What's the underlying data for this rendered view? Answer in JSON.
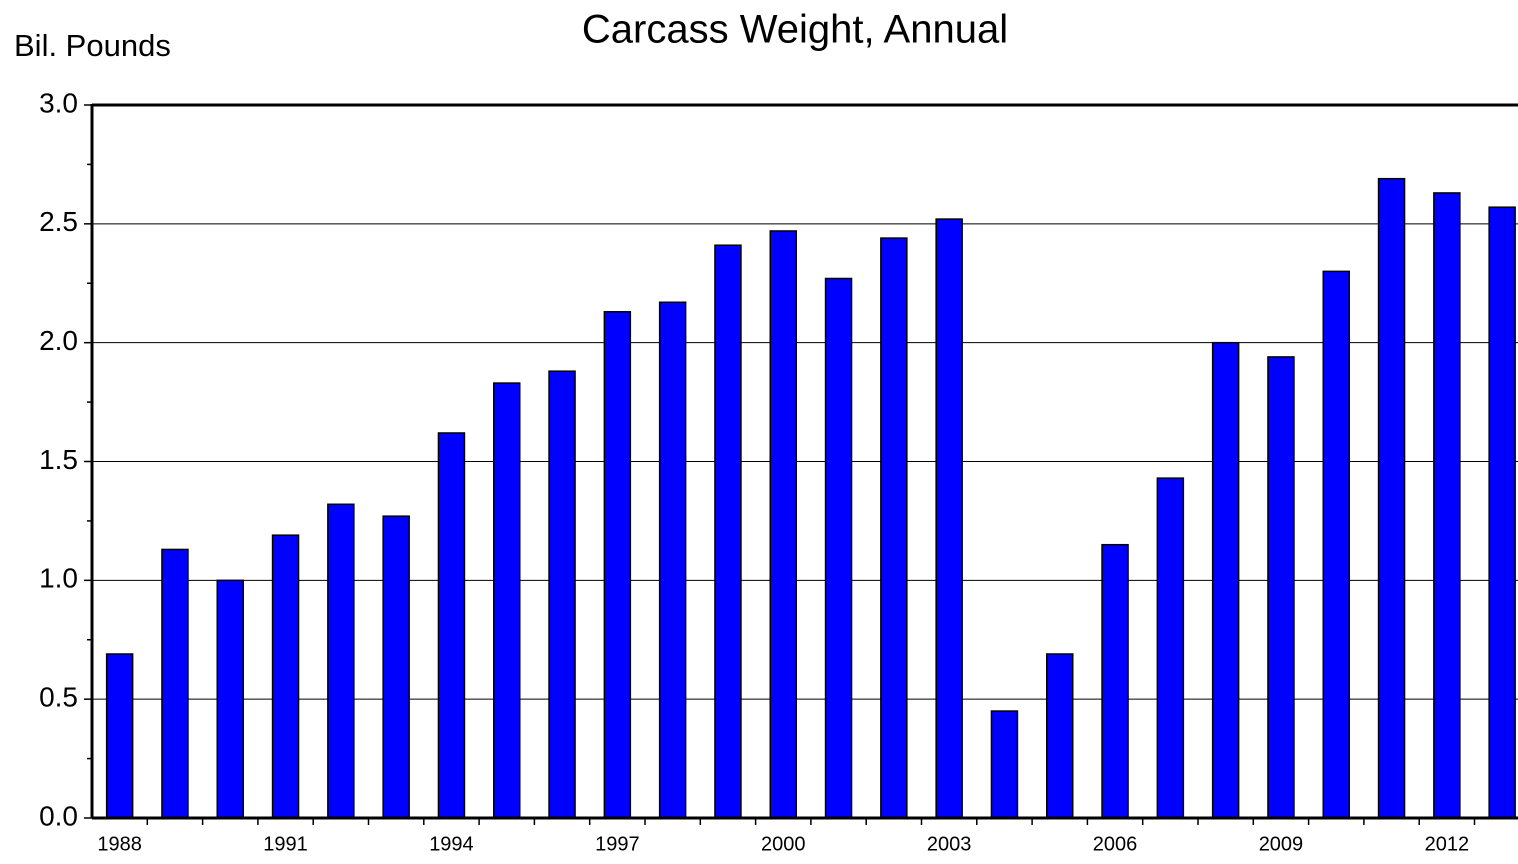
{
  "chart_data": {
    "type": "bar",
    "title": "Carcass Weight, Annual",
    "y_label": "Bil. Pounds",
    "categories": [
      "1988",
      null,
      null,
      "1991",
      null,
      null,
      "1994",
      null,
      null,
      "1997",
      null,
      null,
      "2000",
      null,
      null,
      "2003",
      null,
      null,
      "2006",
      null,
      null,
      "2009",
      null,
      null,
      "2012",
      null
    ],
    "values": [
      0.69,
      1.13,
      1.0,
      1.19,
      1.32,
      1.27,
      1.62,
      1.83,
      1.88,
      2.13,
      2.17,
      2.41,
      2.47,
      2.27,
      2.44,
      2.52,
      0.45,
      0.69,
      1.15,
      1.43,
      2.0,
      1.94,
      2.3,
      2.69,
      2.63,
      2.57
    ],
    "color": "#0000ff",
    "ylim": [
      0,
      3
    ],
    "yticks": [
      {
        "value": 0,
        "label": "0.0"
      },
      {
        "value": 0.5,
        "label": "0.5"
      },
      {
        "value": 1,
        "label": "1.0"
      },
      {
        "value": 1.5,
        "label": "1.5"
      },
      {
        "value": 2,
        "label": "2.0"
      },
      {
        "value": 2.5,
        "label": "2.5"
      },
      {
        "value": 3,
        "label": "3.0"
      }
    ],
    "grid": true
  }
}
